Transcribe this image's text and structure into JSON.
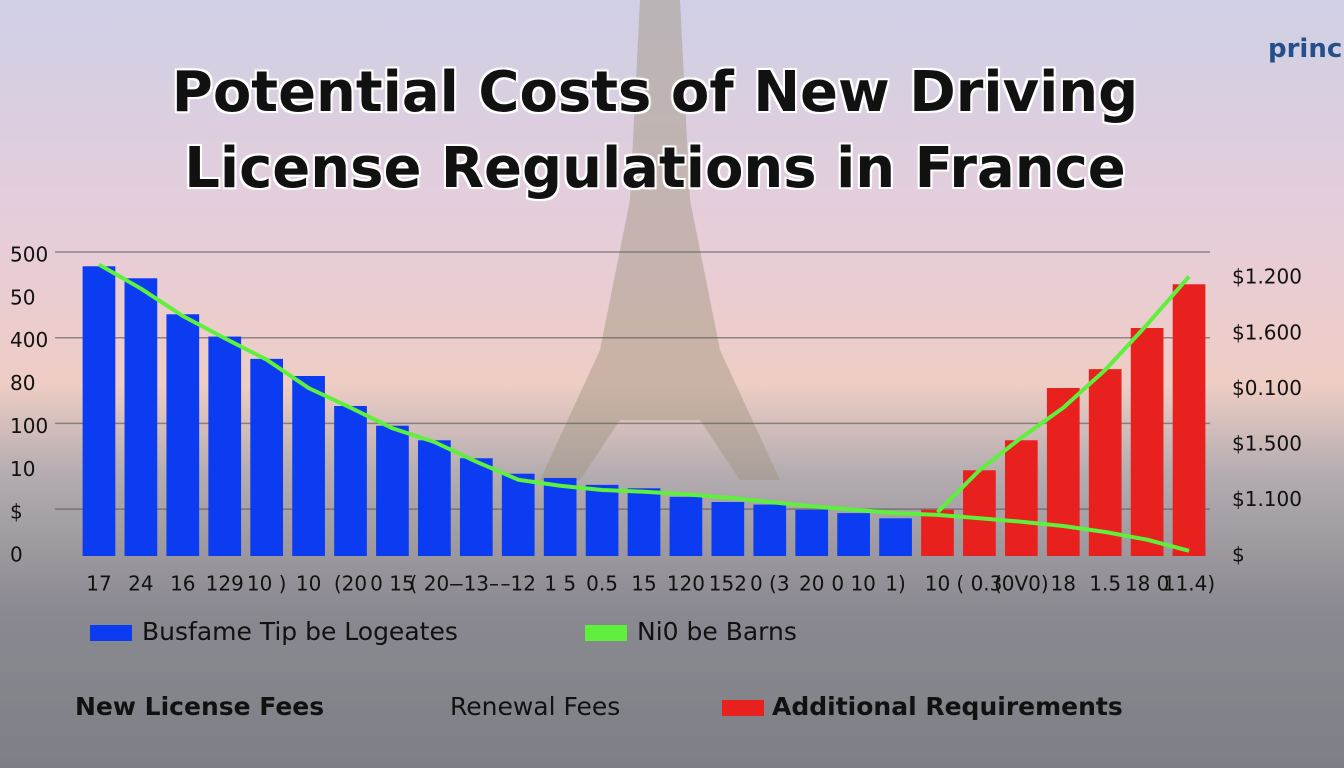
{
  "logo": "princh",
  "chart_data": {
    "type": "bar",
    "title": "Potential Costs of New Driving License Regulations in France",
    "categories": [
      "17",
      "24",
      "16",
      "129",
      "10 )",
      "10",
      "(20",
      "0 15",
      "( 20–",
      "–13–",
      "–12",
      "1 5",
      "0.5",
      "15",
      "120",
      "152",
      "0 (3",
      "20",
      "0 10",
      "1)",
      "10",
      "( 0.3",
      "(0V0)",
      "18",
      "1.5",
      "18 0",
      "11.4)"
    ],
    "series": [
      {
        "name": "Busfame Tip be Logeates",
        "type": "bar",
        "color": "#0b3cf2",
        "values": [
          338,
          324,
          282,
          256,
          230,
          210,
          175,
          152,
          135,
          114,
          96,
          91,
          83,
          79,
          69,
          63,
          60,
          54,
          50,
          44,
          null,
          null,
          null,
          null,
          null,
          null,
          5
        ]
      },
      {
        "name": "Additional Requirements",
        "type": "bar",
        "color": "#e8201e",
        "values": [
          null,
          null,
          null,
          null,
          null,
          null,
          null,
          null,
          null,
          null,
          null,
          null,
          null,
          null,
          null,
          null,
          null,
          null,
          null,
          null,
          54,
          100,
          135,
          196,
          218,
          266,
          317
        ]
      },
      {
        "name": "Ni0 be Barns",
        "type": "line",
        "color": "#5ef03c",
        "values": [
          340,
          312,
          280,
          254,
          229,
          196,
          173,
          149,
          133,
          110,
          89,
          82,
          77,
          75,
          72,
          68,
          63,
          58,
          54,
          50,
          48,
          44,
          40,
          35,
          28,
          19,
          6
        ]
      },
      {
        "type": "line",
        "color": "#5ef03c",
        "values": [
          null,
          null,
          null,
          null,
          null,
          null,
          null,
          null,
          null,
          null,
          null,
          null,
          null,
          null,
          null,
          null,
          null,
          null,
          null,
          null,
          51,
          100,
          138,
          173,
          217,
          270,
          326
        ]
      }
    ],
    "footer_labels": [
      "New License Fees",
      "Renewal Fees"
    ],
    "ylim": [
      0,
      350
    ],
    "yticks": [
      0,
      {
        "value": 50,
        "label": "$"
      },
      {
        "value": 100,
        "label": "10"
      },
      {
        "value": 150,
        "label": "100"
      },
      {
        "value": 200,
        "label": "80"
      },
      {
        "value": 250,
        "label": "400"
      },
      {
        "value": 300,
        "label": "50"
      },
      {
        "value": 350,
        "label": "500"
      }
    ],
    "y2lim": [
      0,
      5.4
    ],
    "y2ticks": [
      {
        "value": 0,
        "label": "$"
      },
      {
        "value": 1,
        "label": "$1.100"
      },
      {
        "value": 2,
        "label": "$1.500"
      },
      {
        "value": 3,
        "label": "$0.100"
      },
      {
        "value": 4,
        "label": "$1.600"
      },
      {
        "value": 5,
        "label": "$1.200"
      }
    ],
    "grid": true
  }
}
